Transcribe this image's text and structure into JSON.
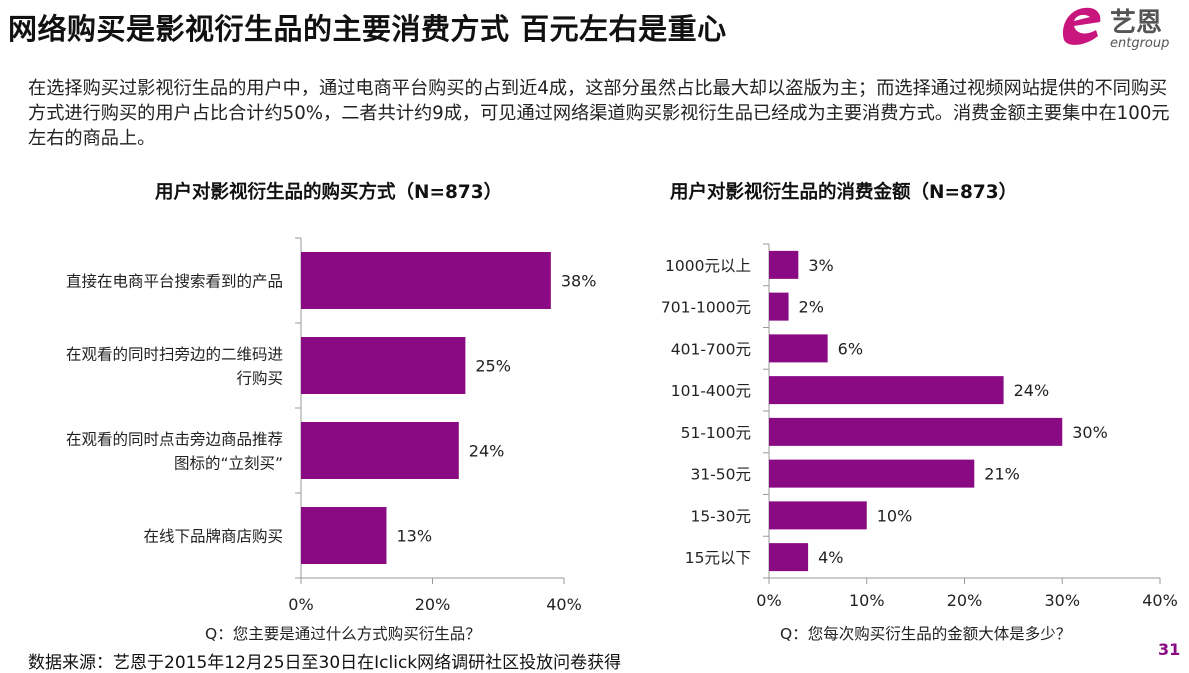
{
  "header": {
    "title": "网络购买是影视衍生品的主要消费方式  百元左右是重心",
    "logo_text": "艺恩",
    "logo_sub": "entgroup"
  },
  "description": "在选择购买过影视衍生品的用户中，通过电商平台购买的占到近4成，这部分虽然占比最大却以盗版为主；而选择通过视频网站提供的不同购买方式进行购买的用户占比合计约50%，二者共计约9成，可见通过网络渠道购买影视衍生品已经成为主要消费方式。消费金额主要集中在100元左右的商品上。",
  "colors": {
    "bar": "#8a0a84",
    "axis": "#9a9a9a",
    "logo": "#c8167e"
  },
  "chart_data": [
    {
      "type": "bar",
      "orientation": "horizontal",
      "title": "用户对影视衍生品的购买方式（N=873）",
      "categories": [
        [
          "直接在电商平台搜索看到的产品"
        ],
        [
          "在观看的同时扫旁边的二维码进",
          "行购买"
        ],
        [
          "在观看的同时点击旁边商品推荐",
          "图标的“立刻买”"
        ],
        [
          "在线下品牌商店购买"
        ]
      ],
      "values": [
        38,
        25,
        24,
        13
      ],
      "data_labels": [
        "38%",
        "25%",
        "24%",
        "13%"
      ],
      "xlim": [
        0,
        40
      ],
      "ticks": [
        "0%",
        "20%",
        "40%"
      ],
      "tick_values": [
        0,
        20,
        40
      ],
      "question": "Q：您主要是通过什么方式购买衍生品？",
      "grid": false
    },
    {
      "type": "bar",
      "orientation": "horizontal",
      "title": "用户对影视衍生品的消费金额（N=873）",
      "categories": [
        [
          "1000元以上"
        ],
        [
          "701-1000元"
        ],
        [
          "401-700元"
        ],
        [
          "101-400元"
        ],
        [
          "51-100元"
        ],
        [
          "31-50元"
        ],
        [
          "15-30元"
        ],
        [
          "15元以下"
        ]
      ],
      "values": [
        3,
        2,
        6,
        24,
        30,
        21,
        10,
        4
      ],
      "data_labels": [
        "3%",
        "2%",
        "6%",
        "24%",
        "30%",
        "21%",
        "10%",
        "4%"
      ],
      "xlim": [
        0,
        40
      ],
      "ticks": [
        "0%",
        "10%",
        "20%",
        "30%",
        "40%"
      ],
      "tick_values": [
        0,
        10,
        20,
        30,
        40
      ],
      "question": "Q：您每次购买衍生品的金额大体是多少？",
      "grid": false
    }
  ],
  "footer": {
    "source": "数据来源：艺恩于2015年12月25日至30日在Iclick网络调研社区投放问卷获得",
    "page_number": "31"
  }
}
